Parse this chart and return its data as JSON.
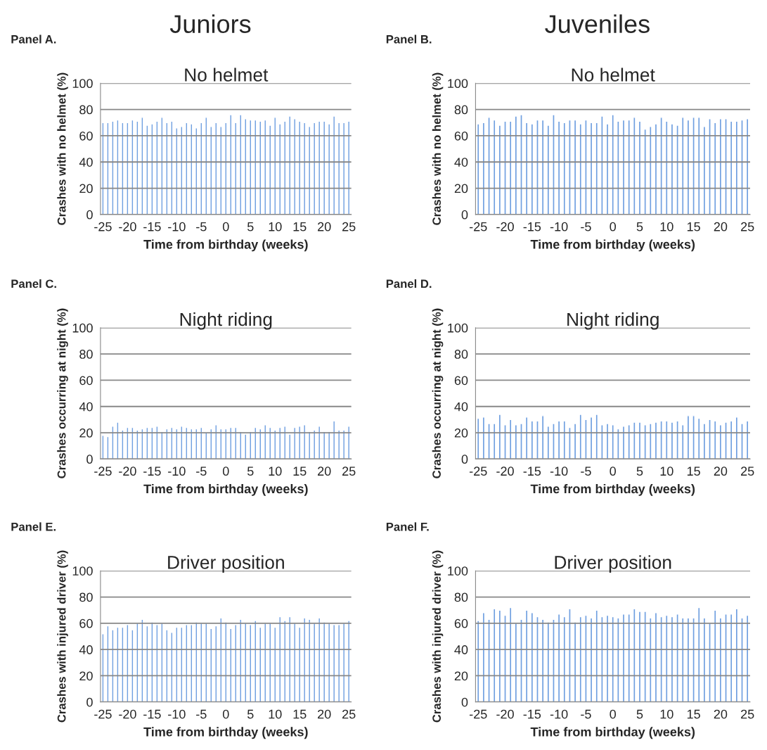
{
  "chart_data": [
    {
      "type": "bar",
      "annotations": [
        "Juniors"
      ],
      "subtitle": "Panel A.",
      "title": "No helmet",
      "xlabel": "Time from birthday (weeks)",
      "ylabel": "Crashes with no helmet (%)",
      "color": "#6f9fe0",
      "grid": "y",
      "xlim": [
        -25.5,
        25.5
      ],
      "xticks": [
        -25,
        -20,
        -15,
        -10,
        -5,
        0,
        5,
        10,
        15,
        20,
        25
      ],
      "ylim": [
        0,
        100
      ],
      "yticks": [
        0,
        20,
        40,
        60,
        80,
        100
      ],
      "x": [
        -25,
        -24,
        -23,
        -22,
        -21,
        -20,
        -19,
        -18,
        -17,
        -16,
        -15,
        -14,
        -13,
        -12,
        -11,
        -10,
        -9,
        -8,
        -7,
        -6,
        -5,
        -4,
        -3,
        -2,
        -1,
        0,
        1,
        2,
        3,
        4,
        5,
        6,
        7,
        8,
        9,
        10,
        11,
        12,
        13,
        14,
        15,
        16,
        17,
        18,
        19,
        20,
        21,
        22,
        23,
        24,
        25
      ],
      "values": [
        70,
        70,
        71,
        72,
        70,
        70,
        72,
        71,
        74,
        68,
        69,
        71,
        74,
        70,
        71,
        66,
        67,
        70,
        69,
        66,
        70,
        74,
        67,
        70,
        67,
        70,
        76,
        70,
        76,
        73,
        72,
        72,
        71,
        72,
        68,
        74,
        69,
        71,
        75,
        73,
        71,
        70,
        67,
        70,
        71,
        71,
        69,
        75,
        70,
        70,
        71
      ]
    },
    {
      "type": "bar",
      "annotations": [
        "Juveniles"
      ],
      "subtitle": "Panel B.",
      "title": "No helmet",
      "xlabel": "Time from birthday (weeks)",
      "ylabel": "Crashes with no helmet (%)",
      "color": "#6f9fe0",
      "grid": "y",
      "xlim": [
        -25.5,
        25.5
      ],
      "xticks": [
        -25,
        -20,
        -15,
        -10,
        -5,
        0,
        5,
        10,
        15,
        20,
        25
      ],
      "ylim": [
        0,
        100
      ],
      "yticks": [
        0,
        20,
        40,
        60,
        80,
        100
      ],
      "x": [
        -25,
        -24,
        -23,
        -22,
        -21,
        -20,
        -19,
        -18,
        -17,
        -16,
        -15,
        -14,
        -13,
        -12,
        -11,
        -10,
        -9,
        -8,
        -7,
        -6,
        -5,
        -4,
        -3,
        -2,
        -1,
        0,
        1,
        2,
        3,
        4,
        5,
        6,
        7,
        8,
        9,
        10,
        11,
        12,
        13,
        14,
        15,
        16,
        17,
        18,
        19,
        20,
        21,
        22,
        23,
        24,
        25
      ],
      "values": [
        69,
        70,
        74,
        72,
        68,
        71,
        71,
        75,
        76,
        70,
        69,
        72,
        72,
        68,
        76,
        71,
        70,
        72,
        72,
        69,
        72,
        70,
        70,
        75,
        69,
        76,
        71,
        72,
        72,
        74,
        71,
        65,
        67,
        69,
        74,
        71,
        69,
        68,
        74,
        72,
        74,
        74,
        67,
        73,
        70,
        73,
        73,
        71,
        71,
        72,
        73
      ]
    },
    {
      "type": "bar",
      "subtitle": "Panel C.",
      "title": "Night riding",
      "xlabel": "Time from birthday (weeks)",
      "ylabel": "Crashes occurring at night (%)",
      "color": "#6f9fe0",
      "grid": "y",
      "xlim": [
        -25.5,
        25.5
      ],
      "xticks": [
        -25,
        -20,
        -15,
        -10,
        -5,
        0,
        5,
        10,
        15,
        20,
        25
      ],
      "ylim": [
        0,
        100
      ],
      "yticks": [
        0,
        20,
        40,
        60,
        80,
        100
      ],
      "x": [
        -25,
        -24,
        -23,
        -22,
        -21,
        -20,
        -19,
        -18,
        -17,
        -16,
        -15,
        -14,
        -13,
        -12,
        -11,
        -10,
        -9,
        -8,
        -7,
        -6,
        -5,
        -4,
        -3,
        -2,
        -1,
        0,
        1,
        2,
        3,
        4,
        5,
        6,
        7,
        8,
        9,
        10,
        11,
        12,
        13,
        14,
        15,
        16,
        17,
        18,
        19,
        20,
        21,
        22,
        23,
        24,
        25
      ],
      "values": [
        18,
        17,
        25,
        28,
        22,
        24,
        24,
        22,
        23,
        24,
        24,
        25,
        21,
        23,
        24,
        23,
        25,
        24,
        23,
        23,
        24,
        20,
        23,
        26,
        23,
        23,
        24,
        24,
        21,
        19,
        21,
        24,
        23,
        26,
        24,
        22,
        24,
        25,
        19,
        24,
        25,
        26,
        21,
        22,
        25,
        21,
        21,
        29,
        22,
        22,
        25
      ]
    },
    {
      "type": "bar",
      "subtitle": "Panel D.",
      "title": "Night riding",
      "xlabel": "Time from birthday (weeks)",
      "ylabel": "Crashes occurring at night (%)",
      "color": "#6f9fe0",
      "grid": "y",
      "xlim": [
        -25.5,
        25.5
      ],
      "xticks": [
        -25,
        -20,
        -15,
        -10,
        -5,
        0,
        5,
        10,
        15,
        20,
        25
      ],
      "ylim": [
        0,
        100
      ],
      "yticks": [
        0,
        20,
        40,
        60,
        80,
        100
      ],
      "x": [
        -25,
        -24,
        -23,
        -22,
        -21,
        -20,
        -19,
        -18,
        -17,
        -16,
        -15,
        -14,
        -13,
        -12,
        -11,
        -10,
        -9,
        -8,
        -7,
        -6,
        -5,
        -4,
        -3,
        -2,
        -1,
        0,
        1,
        2,
        3,
        4,
        5,
        6,
        7,
        8,
        9,
        10,
        11,
        12,
        13,
        14,
        15,
        16,
        17,
        18,
        19,
        20,
        21,
        22,
        23,
        24,
        25
      ],
      "values": [
        31,
        32,
        27,
        27,
        34,
        26,
        30,
        26,
        27,
        32,
        29,
        29,
        33,
        25,
        27,
        29,
        29,
        24,
        27,
        34,
        30,
        32,
        34,
        26,
        27,
        26,
        23,
        25,
        26,
        28,
        28,
        26,
        27,
        28,
        29,
        29,
        28,
        29,
        26,
        33,
        33,
        31,
        27,
        30,
        29,
        26,
        28,
        29,
        32,
        27,
        29
      ]
    },
    {
      "type": "bar",
      "subtitle": "Panel E.",
      "title": "Driver position",
      "xlabel": "Time from birthday (weeks)",
      "ylabel": "Crashes with injured driver (%)",
      "color": "#6f9fe0",
      "grid": "y",
      "xlim": [
        -25.5,
        25.5
      ],
      "xticks": [
        -25,
        -20,
        -15,
        -10,
        -5,
        0,
        5,
        10,
        15,
        20,
        25
      ],
      "ylim": [
        0,
        100
      ],
      "yticks": [
        0,
        20,
        40,
        60,
        80,
        100
      ],
      "x": [
        -25,
        -24,
        -23,
        -22,
        -21,
        -20,
        -19,
        -18,
        -17,
        -16,
        -15,
        -14,
        -13,
        -12,
        -11,
        -10,
        -9,
        -8,
        -7,
        -6,
        -5,
        -4,
        -3,
        -2,
        -1,
        0,
        1,
        2,
        3,
        4,
        5,
        6,
        7,
        8,
        9,
        10,
        11,
        12,
        13,
        14,
        15,
        16,
        17,
        18,
        19,
        20,
        21,
        22,
        23,
        24,
        25
      ],
      "values": [
        52,
        58,
        55,
        57,
        57,
        59,
        55,
        60,
        63,
        58,
        61,
        59,
        60,
        55,
        53,
        57,
        57,
        59,
        59,
        61,
        60,
        60,
        56,
        58,
        64,
        61,
        56,
        59,
        63,
        60,
        59,
        62,
        57,
        60,
        60,
        57,
        65,
        62,
        65,
        60,
        57,
        64,
        63,
        60,
        64,
        61,
        60,
        59,
        59,
        60,
        62
      ]
    },
    {
      "type": "bar",
      "subtitle": "Panel F.",
      "title": "Driver position",
      "xlabel": "Time from birthday (weeks)",
      "ylabel": "Crashes with injured driver (%)",
      "color": "#6f9fe0",
      "grid": "y",
      "xlim": [
        -25.5,
        25.5
      ],
      "xticks": [
        -25,
        -20,
        -15,
        -10,
        -5,
        0,
        5,
        10,
        15,
        20,
        25
      ],
      "ylim": [
        0,
        100
      ],
      "yticks": [
        0,
        20,
        40,
        60,
        80,
        100
      ],
      "x": [
        -25,
        -24,
        -23,
        -22,
        -21,
        -20,
        -19,
        -18,
        -17,
        -16,
        -15,
        -14,
        -13,
        -12,
        -11,
        -10,
        -9,
        -8,
        -7,
        -6,
        -5,
        -4,
        -3,
        -2,
        -1,
        0,
        1,
        2,
        3,
        4,
        5,
        6,
        7,
        8,
        9,
        10,
        11,
        12,
        13,
        14,
        15,
        16,
        17,
        18,
        19,
        20,
        21,
        22,
        23,
        24,
        25
      ],
      "values": [
        62,
        68,
        63,
        71,
        70,
        66,
        72,
        60,
        63,
        70,
        68,
        65,
        63,
        61,
        63,
        67,
        65,
        71,
        61,
        65,
        66,
        64,
        70,
        65,
        66,
        65,
        64,
        67,
        67,
        71,
        69,
        69,
        64,
        68,
        65,
        66,
        65,
        67,
        64,
        64,
        64,
        72,
        64,
        60,
        70,
        64,
        67,
        67,
        71,
        64,
        66
      ]
    }
  ]
}
